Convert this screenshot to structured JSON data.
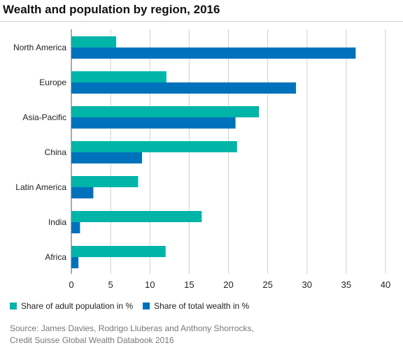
{
  "chart_data": {
    "type": "bar",
    "orientation": "horizontal",
    "title": "Wealth and population by region, 2016",
    "categories": [
      "North America",
      "Europe",
      "Asia-Pacific",
      "China",
      "Latin America",
      "India",
      "Africa"
    ],
    "series": [
      {
        "name": "Share of adult population in %",
        "color": "#00b5a8",
        "values": [
          5.7,
          12.1,
          23.9,
          21.1,
          8.5,
          16.6,
          12.0
        ]
      },
      {
        "name": "Share of total wealth in %",
        "color": "#0072bc",
        "values": [
          36.2,
          28.6,
          20.9,
          9.0,
          2.8,
          1.1,
          0.9
        ]
      }
    ],
    "xlim": [
      0,
      40
    ],
    "xticks": [
      0,
      5,
      10,
      15,
      20,
      25,
      30,
      35,
      40
    ],
    "grid": "vertical",
    "legend_position": "bottom-left"
  },
  "source": {
    "line1": "Source: James Davies, Rodrigo Lluberas and Anthony Shorrocks,",
    "line2": "Credit Suisse Global Wealth Databook 2016"
  }
}
